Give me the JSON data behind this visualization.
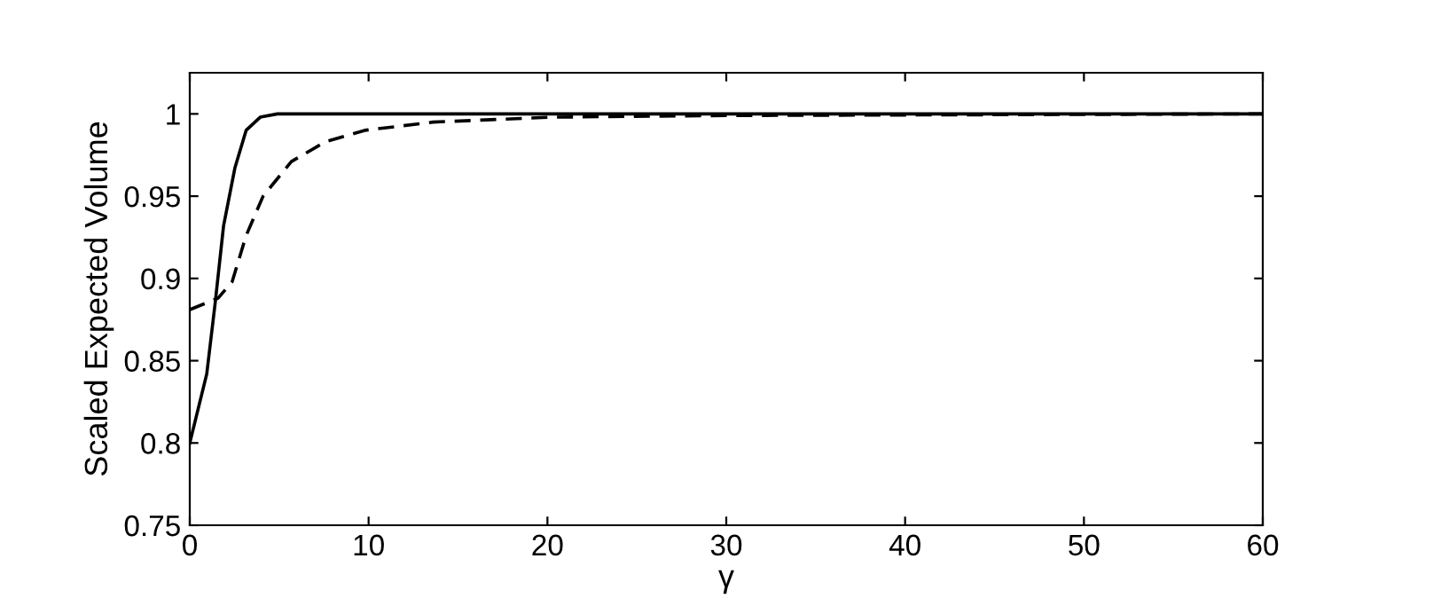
{
  "chart_data": {
    "type": "line",
    "xlabel": "γ",
    "ylabel": "Scaled Expected Volume",
    "xlim": [
      0,
      60
    ],
    "ylim": [
      0.75,
      1.025
    ],
    "xticks": [
      0,
      10,
      20,
      30,
      40,
      50,
      60
    ],
    "yticks": [
      0.75,
      0.8,
      0.85,
      0.9,
      0.95,
      1
    ],
    "grid": false,
    "legend": false,
    "series": [
      {
        "color": "#000000",
        "line_style": "solid",
        "x": [
          0,
          0.95,
          1.42,
          1.89,
          2.52,
          3.15,
          3.94,
          4.9,
          60
        ],
        "values": [
          0.8,
          0.842,
          0.885,
          0.932,
          0.967,
          0.99,
          0.998,
          1.0,
          1.0
        ]
      },
      {
        "color": "#000000",
        "line_style": "dashed",
        "x": [
          0,
          1.58,
          2.37,
          3.15,
          4.1,
          5.68,
          7.57,
          9.78,
          13.6,
          20.2,
          30,
          60
        ],
        "values": [
          0.881,
          0.888,
          0.898,
          0.926,
          0.95,
          0.971,
          0.983,
          0.99,
          0.995,
          0.998,
          0.999,
          1.0
        ]
      }
    ]
  }
}
